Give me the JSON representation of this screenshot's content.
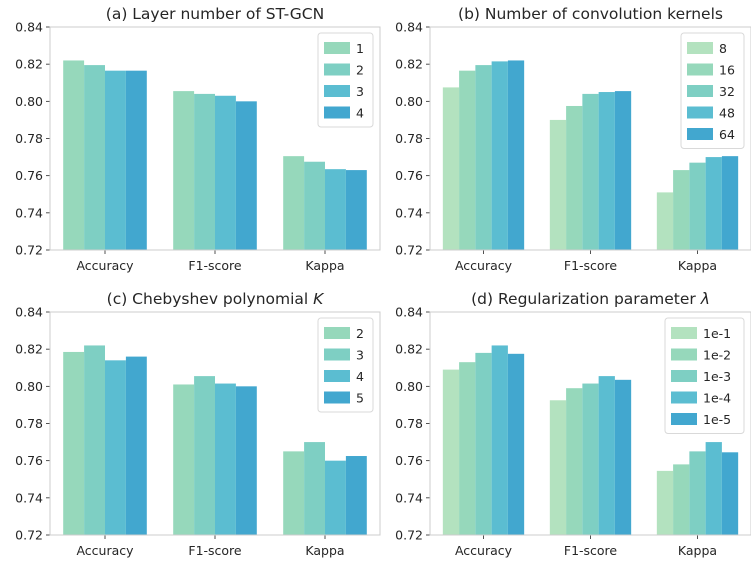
{
  "chart_data": [
    {
      "type": "bar",
      "title": "(a) Layer number of ST-GCN",
      "categories": [
        "Accuracy",
        "F1-score",
        "Kappa"
      ],
      "ylim": [
        0.72,
        0.84
      ],
      "yticks": [
        "0.72",
        "0.74",
        "0.76",
        "0.78",
        "0.80",
        "0.82",
        "0.84"
      ],
      "grid": false,
      "legend_position": "top-right",
      "series": [
        {
          "name": "1",
          "color": "#96d8bb",
          "values": [
            0.822,
            0.8055,
            0.7705
          ]
        },
        {
          "name": "2",
          "color": "#7ecfc3",
          "values": [
            0.8195,
            0.804,
            0.7675
          ]
        },
        {
          "name": "3",
          "color": "#5bbdd1",
          "values": [
            0.8165,
            0.803,
            0.7635
          ]
        },
        {
          "name": "4",
          "color": "#42a7cf",
          "values": [
            0.8165,
            0.8,
            0.763
          ]
        }
      ]
    },
    {
      "type": "bar",
      "title": "(b) Number of convolution kernels",
      "categories": [
        "Accuracy",
        "F1-score",
        "Kappa"
      ],
      "ylim": [
        0.72,
        0.84
      ],
      "yticks": [
        "0.72",
        "0.74",
        "0.76",
        "0.78",
        "0.80",
        "0.82",
        "0.84"
      ],
      "grid": false,
      "legend_position": "top-right",
      "series": [
        {
          "name": "8",
          "color": "#b3e2bf",
          "values": [
            0.8075,
            0.79,
            0.751
          ]
        },
        {
          "name": "16",
          "color": "#96d8bb",
          "values": [
            0.8165,
            0.7975,
            0.763
          ]
        },
        {
          "name": "32",
          "color": "#7ecfc3",
          "values": [
            0.8195,
            0.804,
            0.767
          ]
        },
        {
          "name": "48",
          "color": "#5bbdd1",
          "values": [
            0.8215,
            0.805,
            0.77
          ]
        },
        {
          "name": "64",
          "color": "#42a7cf",
          "values": [
            0.822,
            0.8055,
            0.7705
          ]
        }
      ]
    },
    {
      "type": "bar",
      "title": "(c) Chebyshev polynomial K",
      "categories": [
        "Accuracy",
        "F1-score",
        "Kappa"
      ],
      "ylim": [
        0.72,
        0.84
      ],
      "yticks": [
        "0.72",
        "0.74",
        "0.76",
        "0.78",
        "0.80",
        "0.82",
        "0.84"
      ],
      "grid": false,
      "legend_position": "top-right",
      "series": [
        {
          "name": "2",
          "color": "#96d8bb",
          "values": [
            0.8185,
            0.801,
            0.765
          ]
        },
        {
          "name": "3",
          "color": "#7ecfc3",
          "values": [
            0.822,
            0.8055,
            0.77
          ]
        },
        {
          "name": "4",
          "color": "#5bbdd1",
          "values": [
            0.814,
            0.8015,
            0.76
          ]
        },
        {
          "name": "5",
          "color": "#42a7cf",
          "values": [
            0.816,
            0.8,
            0.7625
          ]
        }
      ]
    },
    {
      "type": "bar",
      "title": "(d) Regularization parameter λ",
      "categories": [
        "Accuracy",
        "F1-score",
        "Kappa"
      ],
      "ylim": [
        0.72,
        0.84
      ],
      "yticks": [
        "0.72",
        "0.74",
        "0.76",
        "0.78",
        "0.80",
        "0.82",
        "0.84"
      ],
      "grid": false,
      "legend_position": "top-right",
      "series": [
        {
          "name": "1e-1",
          "color": "#b3e2bf",
          "values": [
            0.809,
            0.7925,
            0.7545
          ]
        },
        {
          "name": "1e-2",
          "color": "#96d8bb",
          "values": [
            0.813,
            0.799,
            0.758
          ]
        },
        {
          "name": "1e-3",
          "color": "#7ecfc3",
          "values": [
            0.818,
            0.8015,
            0.765
          ]
        },
        {
          "name": "1e-4",
          "color": "#5bbdd1",
          "values": [
            0.822,
            0.8055,
            0.77
          ]
        },
        {
          "name": "1e-5",
          "color": "#42a7cf",
          "values": [
            0.8175,
            0.8035,
            0.7645
          ]
        }
      ]
    }
  ]
}
